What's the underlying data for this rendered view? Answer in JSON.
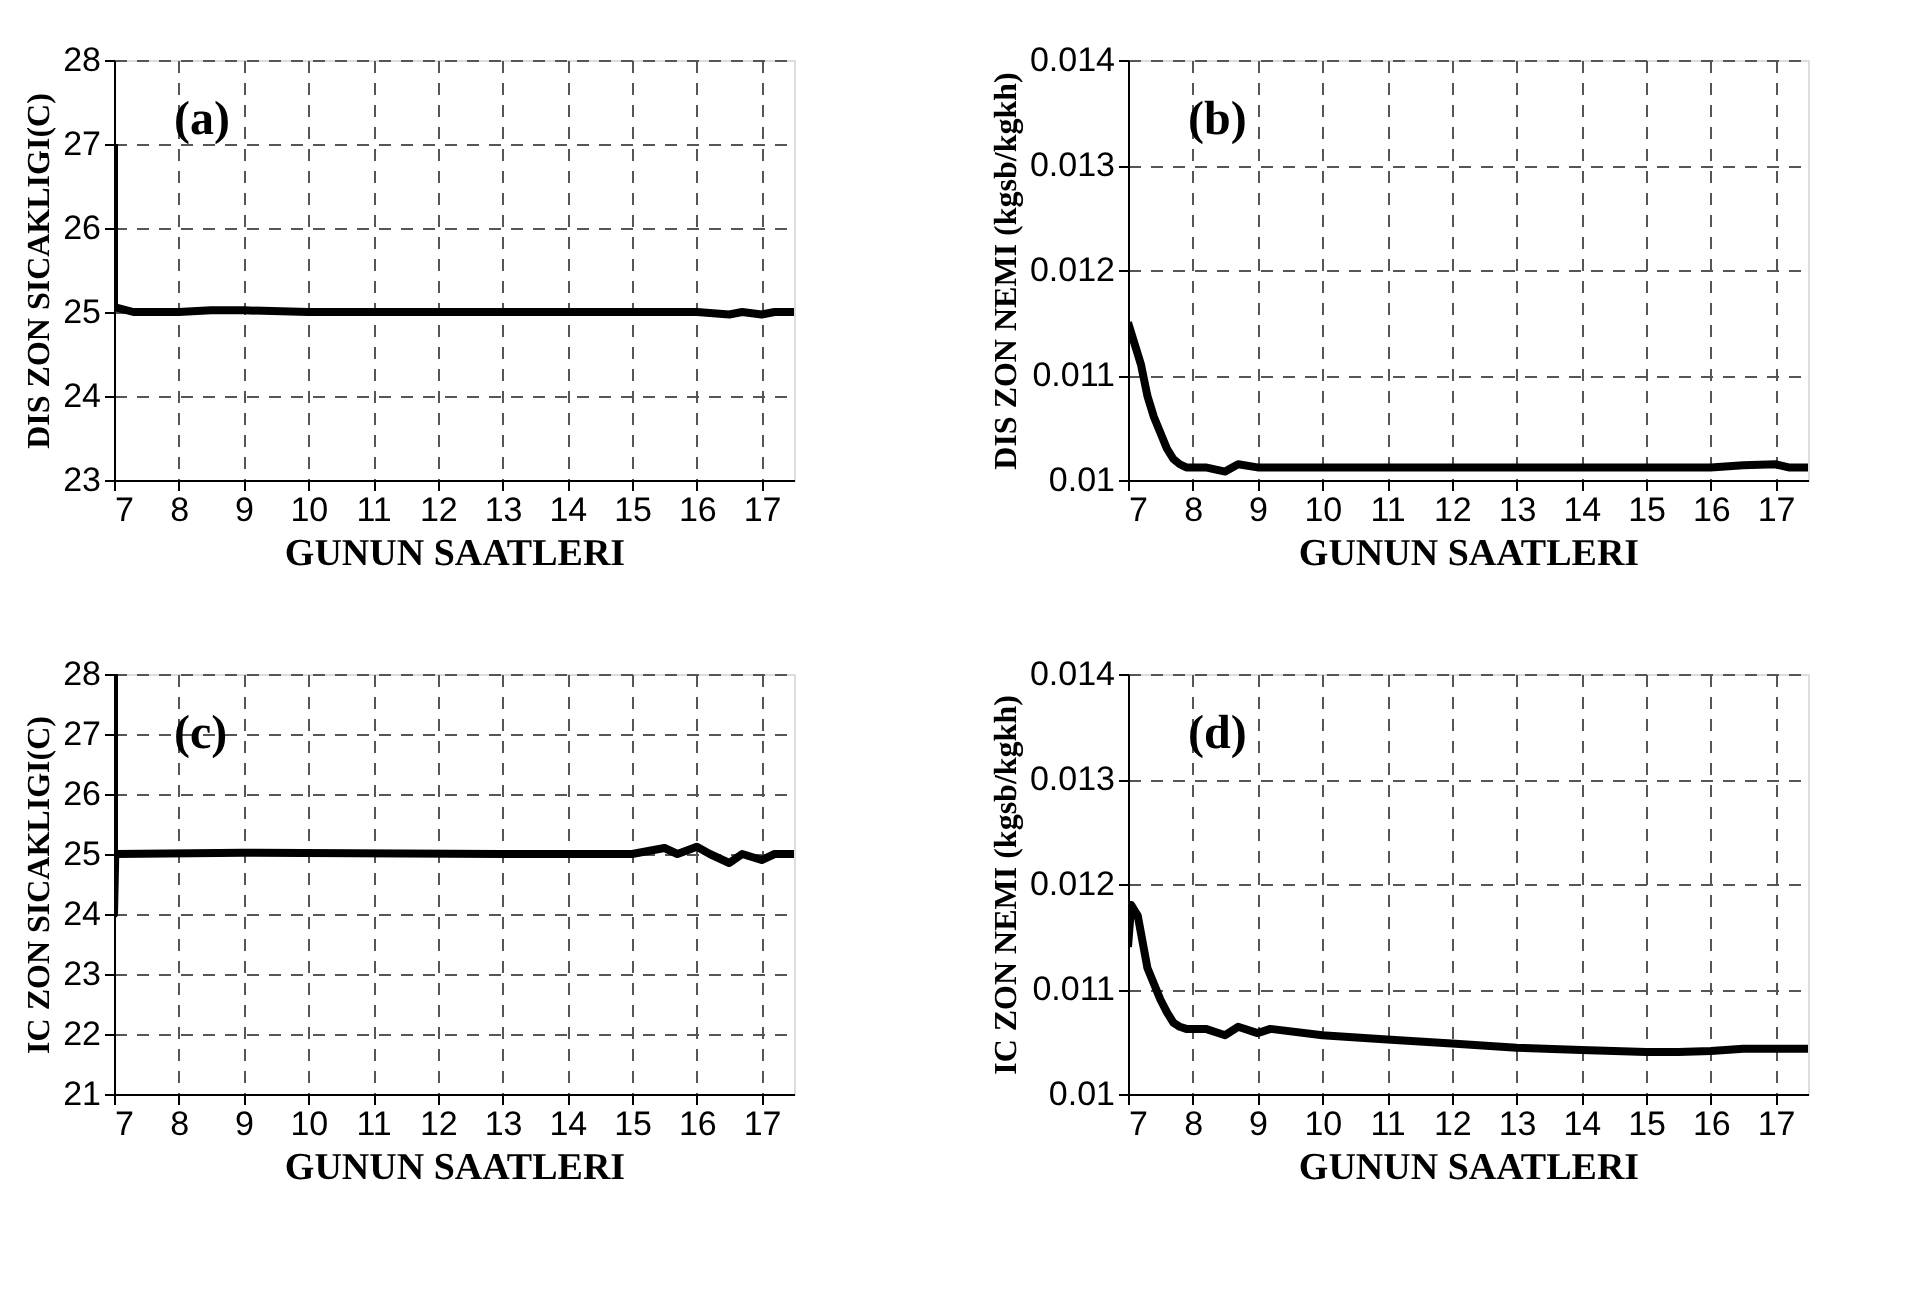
{
  "chart_data": [
    {
      "type": "line",
      "xlabel": "GUNUN SAATLERI",
      "ylabel": "DIS ZON SICAKLIGI(C)",
      "annotations": [
        "(a)"
      ],
      "xlim": [
        7,
        17.5
      ],
      "xticks": [
        7,
        8,
        9,
        10,
        11,
        12,
        13,
        14,
        15,
        16,
        17
      ],
      "ylim": [
        23,
        28
      ],
      "yticks": [
        23,
        24,
        25,
        26,
        27,
        28
      ],
      "grid": true,
      "line_style": "solid",
      "series": [
        {
          "color": "#000000",
          "x": [
            7,
            7,
            7.05,
            7.3,
            8,
            8.5,
            9,
            10,
            11,
            12,
            13,
            14,
            15,
            16,
            16.5,
            16.7,
            17,
            17.2,
            17.5
          ],
          "values": [
            27,
            25.05,
            25.05,
            25,
            25,
            25.02,
            25.02,
            25,
            25,
            25,
            25,
            25,
            25,
            25,
            24.97,
            25,
            24.97,
            25,
            25
          ]
        }
      ]
    },
    {
      "type": "line",
      "xlabel": "GUNUN SAATLERI",
      "ylabel": "DIS ZON NEMI (kgsb/kgkh)",
      "annotations": [
        "(b)"
      ],
      "xlim": [
        7,
        17.5
      ],
      "xticks": [
        7,
        8,
        9,
        10,
        11,
        12,
        13,
        14,
        15,
        16,
        17
      ],
      "ylim": [
        0.01,
        0.014
      ],
      "yticks": [
        0.01,
        0.011,
        0.012,
        0.013,
        0.014
      ],
      "grid": true,
      "line_style": "solid",
      "series": [
        {
          "color": "#000000",
          "x": [
            7,
            7.1,
            7.2,
            7.3,
            7.4,
            7.5,
            7.6,
            7.7,
            7.8,
            7.9,
            8.2,
            8.5,
            8.7,
            9,
            10,
            11,
            12,
            13,
            14,
            15,
            16,
            16.5,
            17,
            17.2,
            17.5
          ],
          "values": [
            0.0115,
            0.0113,
            0.0111,
            0.0108,
            0.0106,
            0.01045,
            0.0103,
            0.0102,
            0.01015,
            0.01012,
            0.01012,
            0.01008,
            0.01015,
            0.01012,
            0.01012,
            0.01012,
            0.01012,
            0.01012,
            0.01012,
            0.01012,
            0.01012,
            0.01014,
            0.01015,
            0.01012,
            0.01012
          ]
        }
      ]
    },
    {
      "type": "line",
      "xlabel": "GUNUN SAATLERI",
      "ylabel": "IC ZON SICAKLIGI(C)",
      "annotations": [
        "(c)"
      ],
      "xlim": [
        7,
        17.5
      ],
      "xticks": [
        7,
        8,
        9,
        10,
        11,
        12,
        13,
        14,
        15,
        16,
        17
      ],
      "ylim": [
        21,
        28
      ],
      "yticks": [
        21,
        22,
        23,
        24,
        25,
        26,
        27,
        28
      ],
      "grid": true,
      "line_style": "solid",
      "series": [
        {
          "color": "#000000",
          "x": [
            7,
            7,
            7.02,
            9,
            13,
            15,
            15.5,
            15.7,
            16,
            16.2,
            16.5,
            16.7,
            17,
            17.2,
            17.5
          ],
          "values": [
            28,
            24,
            25,
            25.02,
            25,
            25,
            25.1,
            25,
            25.12,
            25,
            24.85,
            25,
            24.9,
            25,
            25
          ]
        }
      ]
    },
    {
      "type": "line",
      "xlabel": "GUNUN SAATLERI",
      "ylabel": "IC ZON NEMI (kgsb/kgkh)",
      "annotations": [
        "(d)"
      ],
      "xlim": [
        7,
        17.5
      ],
      "xticks": [
        7,
        8,
        9,
        10,
        11,
        12,
        13,
        14,
        15,
        16,
        17
      ],
      "ylim": [
        0.01,
        0.014
      ],
      "yticks": [
        0.01,
        0.011,
        0.012,
        0.013,
        0.014
      ],
      "grid": true,
      "line_style": "solid",
      "series": [
        {
          "color": "#000000",
          "x": [
            7,
            7.05,
            7.15,
            7.3,
            7.5,
            7.6,
            7.7,
            7.8,
            7.9,
            8.2,
            8.5,
            8.7,
            9,
            9.2,
            10,
            11,
            12,
            13,
            14,
            15,
            15.5,
            16,
            16.5,
            17,
            17.5
          ],
          "values": [
            0.0114,
            0.0118,
            0.0117,
            0.0112,
            0.0109,
            0.01078,
            0.01068,
            0.01064,
            0.01062,
            0.01062,
            0.01056,
            0.01064,
            0.01058,
            0.01062,
            0.01056,
            0.01052,
            0.01048,
            0.01044,
            0.01042,
            0.0104,
            0.0104,
            0.01041,
            0.01043,
            0.01043,
            0.01043
          ]
        }
      ]
    }
  ]
}
